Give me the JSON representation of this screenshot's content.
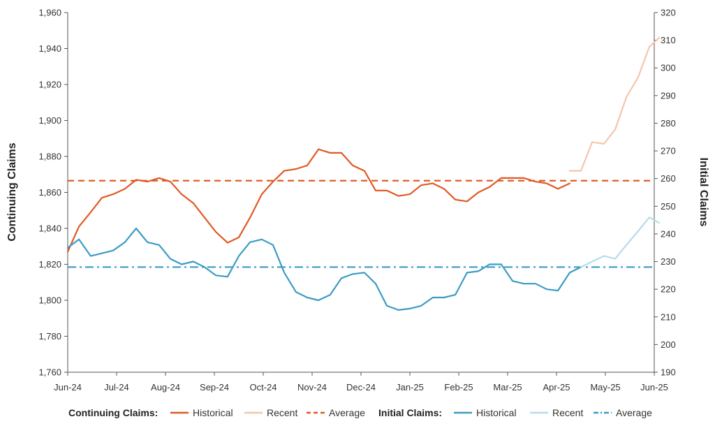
{
  "chart_data": {
    "type": "line",
    "x_labels": [
      "Jun-24",
      "Jul-24",
      "Aug-24",
      "Sep-24",
      "Oct-24",
      "Nov-24",
      "Dec-24",
      "Jan-25",
      "Feb-25",
      "Mar-25",
      "Apr-25",
      "May-25",
      "Jun-25"
    ],
    "left_axis": {
      "label": "Continuing Claims",
      "range": [
        1760,
        1960
      ],
      "ticks": [
        "1,760",
        "1,780",
        "1,800",
        "1,820",
        "1,840",
        "1,860",
        "1,880",
        "1,900",
        "1,920",
        "1,940",
        "1,960"
      ]
    },
    "right_axis": {
      "label": "Initial Claims",
      "range": [
        190,
        320
      ],
      "ticks": [
        "190",
        "200",
        "210",
        "220",
        "230",
        "240",
        "250",
        "260",
        "270",
        "280",
        "290",
        "300",
        "310",
        "320"
      ]
    },
    "series": [
      {
        "group": "Continuing Claims",
        "name": "Historical",
        "axis": "left",
        "color": "#e05a24",
        "style": "solid",
        "x": [
          0,
          0.23,
          0.47,
          0.7,
          0.93,
          1.17,
          1.4,
          1.63,
          1.87,
          2.1,
          2.33,
          2.57,
          2.8,
          3.03,
          3.27,
          3.5,
          3.73,
          3.97,
          4.2,
          4.43,
          4.67,
          4.9,
          5.13,
          5.37,
          5.6,
          5.83,
          6.07,
          6.3,
          6.53,
          6.77,
          7,
          7.23,
          7.47,
          7.7,
          7.93,
          8.17,
          8.4,
          8.63,
          8.87,
          9.1,
          9.33,
          9.57,
          9.8,
          10.03,
          10.27
        ],
        "values": [
          1827,
          1841,
          1849,
          1857,
          1859,
          1862,
          1867,
          1866,
          1868,
          1866,
          1859,
          1854,
          1846,
          1838,
          1832,
          1835,
          1846,
          1859,
          1866,
          1872,
          1873,
          1875,
          1884,
          1882,
          1882,
          1875,
          1872,
          1861,
          1861,
          1858,
          1859,
          1864,
          1865,
          1862,
          1856,
          1855,
          1860,
          1863,
          1868,
          1868,
          1868,
          1866,
          1865,
          1862,
          1865
        ]
      },
      {
        "group": "Continuing Claims",
        "name": "Recent",
        "axis": "left",
        "color": "#f5c6ac",
        "style": "solid",
        "x": [
          10.27,
          10.5,
          10.73,
          10.97,
          11.2,
          11.43,
          11.67,
          11.9,
          12.1
        ],
        "values": [
          1872,
          1872,
          1888,
          1887,
          1895,
          1913,
          1924,
          1941,
          1946
        ]
      },
      {
        "group": "Continuing Claims",
        "name": "Average",
        "axis": "left",
        "color": "#e05a24",
        "style": "dashed",
        "value": 1866.5
      },
      {
        "group": "Initial Claims",
        "name": "Historical",
        "axis": "right",
        "color": "#3c9bc4",
        "style": "solid",
        "x": [
          0,
          0.23,
          0.47,
          0.7,
          0.93,
          1.17,
          1.4,
          1.63,
          1.87,
          2.1,
          2.33,
          2.57,
          2.8,
          3.03,
          3.27,
          3.5,
          3.73,
          3.97,
          4.2,
          4.43,
          4.67,
          4.9,
          5.13,
          5.37,
          5.6,
          5.83,
          6.07,
          6.3,
          6.53,
          6.77,
          7,
          7.23,
          7.47,
          7.7,
          7.93,
          8.17,
          8.4,
          8.63,
          8.87,
          9.1,
          9.33,
          9.57,
          9.8,
          10.03,
          10.27,
          10.5
        ],
        "values": [
          235,
          238,
          232,
          233,
          234,
          237,
          242,
          237,
          236,
          231,
          229,
          230,
          228,
          225,
          224.5,
          232,
          237,
          238,
          236,
          226,
          219,
          217,
          216,
          218,
          224,
          225.5,
          226,
          222,
          214,
          212.5,
          213,
          214,
          217,
          217,
          218,
          226,
          226.5,
          229,
          229,
          223,
          222,
          222,
          220,
          219.5,
          226,
          228
        ]
      },
      {
        "group": "Initial Claims",
        "name": "Recent",
        "axis": "right",
        "color": "#b7dcea",
        "style": "solid",
        "x": [
          10.5,
          10.73,
          10.97,
          11.2,
          11.43,
          11.67,
          11.9,
          12.1
        ],
        "values": [
          228,
          230,
          232,
          231,
          236,
          241,
          246,
          244
        ]
      },
      {
        "group": "Initial Claims",
        "name": "Average",
        "axis": "right",
        "color": "#3c9bc4",
        "style": "dashdot",
        "value": 228
      }
    ],
    "legend": {
      "placement": "bottom",
      "groups": [
        {
          "title": "Continuing Claims:",
          "items": [
            "Historical",
            "Recent",
            "Average"
          ]
        },
        {
          "title": "Initial Claims:",
          "items": [
            "Historical",
            "Recent",
            "Average"
          ]
        }
      ]
    },
    "grid": false
  }
}
